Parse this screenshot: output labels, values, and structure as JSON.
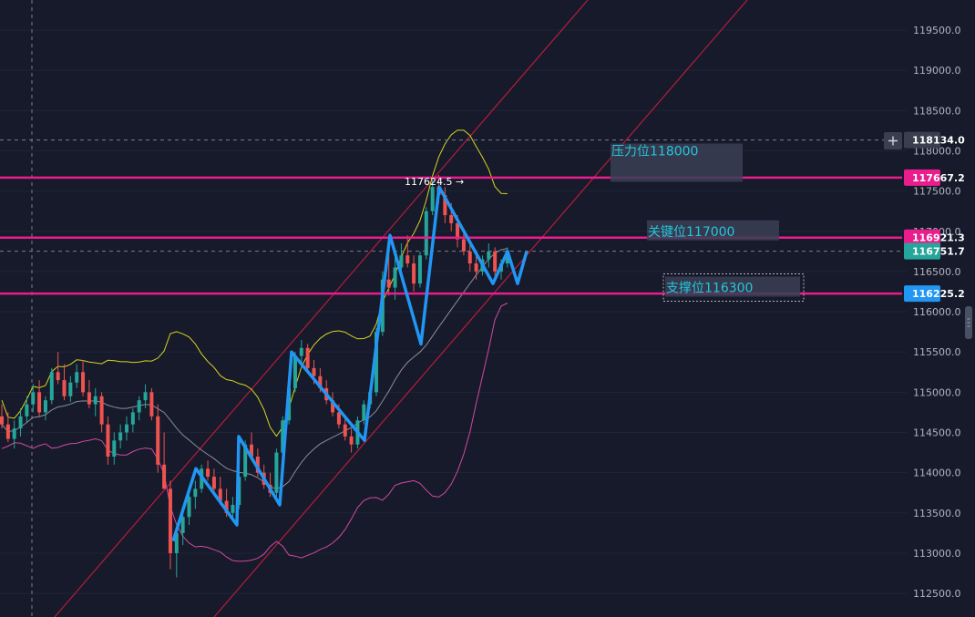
{
  "chart_data": {
    "type": "candlestick",
    "y_ticks": [
      119500,
      119000,
      118500,
      118000,
      117500,
      117000,
      116500,
      116000,
      115500,
      115000,
      114500,
      114000,
      113500,
      113000,
      112500
    ],
    "y_tick_labels": [
      "119500.0",
      "119000.0",
      "118500.0",
      "118000.0",
      "117500.0",
      "117000.0",
      "116500.0",
      "116000.0",
      "115500.0",
      "115000.0",
      "114500.0",
      "114000.0",
      "113500.0",
      "113000.0",
      "112500.0"
    ],
    "ylim": [
      112300,
      119900
    ],
    "candles": [
      [
        114700,
        114850,
        114550,
        114600
      ],
      [
        114600,
        114750,
        114380,
        114420
      ],
      [
        114420,
        114650,
        114300,
        114550
      ],
      [
        114550,
        114800,
        114450,
        114700
      ],
      [
        114700,
        114950,
        114620,
        114850
      ],
      [
        114850,
        115100,
        114750,
        115000
      ],
      [
        115000,
        115150,
        114700,
        114750
      ],
      [
        114750,
        114950,
        114650,
        114900
      ],
      [
        114900,
        115300,
        114850,
        115250
      ],
      [
        115250,
        115500,
        115100,
        115150
      ],
      [
        115150,
        115350,
        114900,
        114950
      ],
      [
        114950,
        115200,
        114880,
        115120
      ],
      [
        115120,
        115350,
        115050,
        115250
      ],
      [
        115250,
        115400,
        114950,
        115000
      ],
      [
        115000,
        115150,
        114800,
        114850
      ],
      [
        114850,
        115050,
        114700,
        114950
      ],
      [
        114950,
        115000,
        114500,
        114600
      ],
      [
        114600,
        114700,
        114100,
        114200
      ],
      [
        114200,
        114500,
        114100,
        114400
      ],
      [
        114400,
        114600,
        114300,
        114500
      ],
      [
        114500,
        114700,
        114400,
        114600
      ],
      [
        114600,
        114800,
        114500,
        114750
      ],
      [
        114750,
        114950,
        114650,
        114900
      ],
      [
        114900,
        115100,
        114800,
        115000
      ],
      [
        115000,
        115050,
        114650,
        114700
      ],
      [
        114700,
        114850,
        114000,
        114100
      ],
      [
        114100,
        114500,
        113800,
        113800
      ],
      [
        113800,
        113900,
        112800,
        113000
      ],
      [
        113000,
        113300,
        112700,
        113250
      ],
      [
        113250,
        113550,
        113100,
        113450
      ],
      [
        113450,
        113800,
        113350,
        113700
      ],
      [
        113700,
        113900,
        113550,
        113800
      ],
      [
        113800,
        114100,
        113750,
        114050
      ],
      [
        114050,
        114150,
        113900,
        113950
      ],
      [
        113950,
        114050,
        113750,
        113800
      ],
      [
        113800,
        113950,
        113600,
        113650
      ],
      [
        113650,
        113800,
        113450,
        113500
      ],
      [
        113500,
        113700,
        113400,
        113600
      ],
      [
        113600,
        114000,
        113550,
        113950
      ],
      [
        113950,
        114400,
        113900,
        114350
      ],
      [
        114350,
        114500,
        114150,
        114200
      ],
      [
        114200,
        114300,
        113950,
        114000
      ],
      [
        114000,
        114100,
        113800,
        113850
      ],
      [
        113850,
        114000,
        113700,
        113750
      ],
      [
        113750,
        114300,
        113650,
        114250
      ],
      [
        114250,
        114700,
        114200,
        114650
      ],
      [
        114650,
        115100,
        114600,
        115050
      ],
      [
        115050,
        115500,
        115000,
        115450
      ],
      [
        115450,
        115650,
        115300,
        115550
      ],
      [
        115550,
        115600,
        115250,
        115300
      ],
      [
        115300,
        115400,
        115100,
        115200
      ],
      [
        115200,
        115300,
        115000,
        115050
      ],
      [
        115050,
        115150,
        114850,
        114900
      ],
      [
        114900,
        115000,
        114700,
        114750
      ],
      [
        114750,
        114850,
        114550,
        114600
      ],
      [
        114600,
        114700,
        114400,
        114450
      ],
      [
        114450,
        114550,
        114250,
        114350
      ],
      [
        114350,
        114700,
        114300,
        114650
      ],
      [
        114650,
        114900,
        114600,
        114850
      ],
      [
        114850,
        115050,
        114800,
        115000
      ],
      [
        115000,
        115800,
        114950,
        115750
      ],
      [
        115750,
        116500,
        115700,
        116400
      ],
      [
        116400,
        116800,
        116200,
        116300
      ],
      [
        116300,
        116700,
        116150,
        116550
      ],
      [
        116550,
        116850,
        116450,
        116700
      ],
      [
        116700,
        116950,
        116550,
        116600
      ],
      [
        116600,
        116700,
        116250,
        116350
      ],
      [
        116350,
        116750,
        116300,
        116700
      ],
      [
        116700,
        117300,
        116650,
        117250
      ],
      [
        117250,
        117650,
        117200,
        117550
      ],
      [
        117550,
        117700,
        117350,
        117450
      ],
      [
        117450,
        117550,
        117100,
        117200
      ],
      [
        117200,
        117350,
        117000,
        117100
      ],
      [
        117100,
        117200,
        116800,
        116900
      ],
      [
        116900,
        117000,
        116700,
        116750
      ],
      [
        116750,
        116850,
        116500,
        116600
      ],
      [
        116600,
        116750,
        116400,
        116500
      ],
      [
        116500,
        116700,
        116450,
        116650
      ],
      [
        116650,
        116850,
        116550,
        116750
      ],
      [
        116750,
        116800,
        116450,
        116500
      ],
      [
        116500,
        116650,
        116400,
        116600
      ],
      [
        116600,
        116800,
        116550,
        116750
      ]
    ],
    "price_tags": [
      {
        "label": "118134.0",
        "value": 118134.0,
        "kind": "crosshair"
      },
      {
        "label": "117667.2",
        "value": 117667.2,
        "kind": "resistance"
      },
      {
        "label": "116921.3",
        "value": 116921.3,
        "kind": "key"
      },
      {
        "label": "116751.7",
        "value": 116751.7,
        "kind": "last"
      },
      {
        "label": "116225.2",
        "value": 116225.2,
        "kind": "support"
      }
    ],
    "horizontal_levels": [
      117667.2,
      116921.3,
      116225.2
    ],
    "high_marker": "117624.5 →",
    "annotations": [
      {
        "text": "压力位118000",
        "value": 118000
      },
      {
        "text": "关键位117000",
        "value": 117000
      },
      {
        "text": "支撑位116300",
        "value": 116300
      }
    ],
    "wave_path": [
      113150,
      114050,
      113350,
      114450,
      113600,
      115500,
      114400,
      116950,
      115600,
      117550,
      116350,
      116750,
      116350,
      116750
    ],
    "colors": {
      "background": "#161a2b",
      "up": "#26a69a",
      "down": "#ef5350",
      "level": "#e91e8c",
      "wave": "#2196f3",
      "channel": "#c2185b",
      "upper_band": "#d8d51e",
      "lower_band": "#d04aa0",
      "middle_band": "#8a8d99",
      "annotation_text": "#26c6da",
      "last_tag": "#26a69a",
      "support_tag": "#2196f3"
    }
  }
}
